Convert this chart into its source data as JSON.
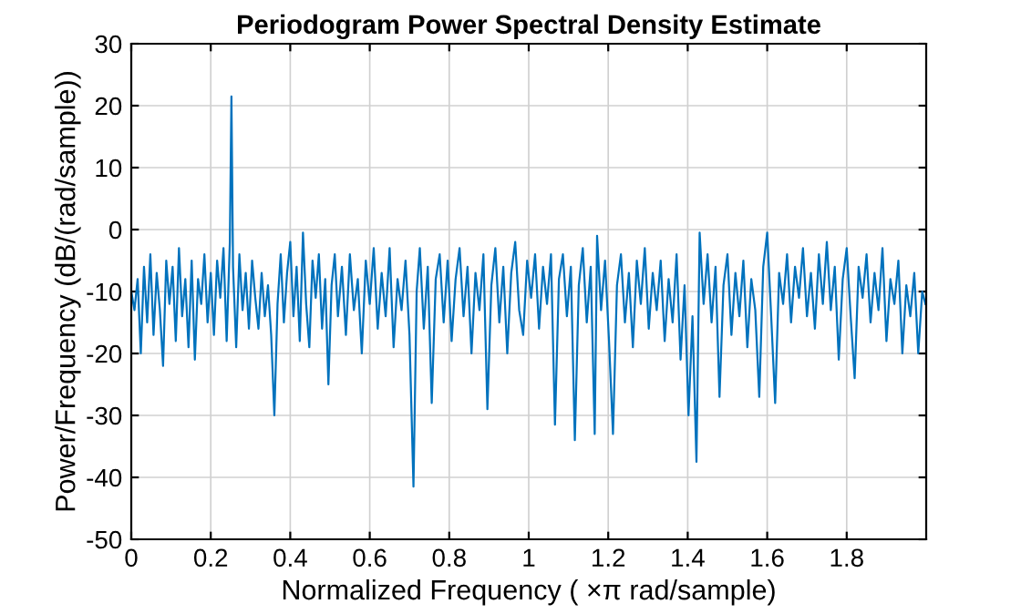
{
  "chart_data": {
    "type": "line",
    "title": "Periodogram Power Spectral Density Estimate",
    "xlabel": "Normalized Frequency ( ×π rad/sample)",
    "ylabel": "Power/Frequency (dB/(rad/sample))",
    "x": [
      0.0,
      0.008,
      0.016,
      0.024,
      0.032,
      0.04,
      0.048,
      0.056,
      0.064,
      0.072,
      0.08,
      0.088,
      0.096,
      0.104,
      0.112,
      0.12,
      0.128,
      0.136,
      0.144,
      0.152,
      0.16,
      0.168,
      0.176,
      0.184,
      0.192,
      0.2,
      0.208,
      0.216,
      0.224,
      0.232,
      0.24,
      0.248,
      0.252,
      0.256,
      0.264,
      0.272,
      0.28,
      0.288,
      0.296,
      0.304,
      0.312,
      0.32,
      0.328,
      0.336,
      0.344,
      0.352,
      0.36,
      0.368,
      0.376,
      0.384,
      0.392,
      0.4,
      0.408,
      0.416,
      0.424,
      0.432,
      0.44,
      0.448,
      0.456,
      0.464,
      0.472,
      0.48,
      0.488,
      0.496,
      0.504,
      0.512,
      0.52,
      0.53,
      0.54,
      0.55,
      0.56,
      0.57,
      0.58,
      0.59,
      0.6,
      0.61,
      0.62,
      0.63,
      0.64,
      0.65,
      0.66,
      0.67,
      0.68,
      0.69,
      0.7,
      0.71,
      0.718,
      0.726,
      0.736,
      0.746,
      0.756,
      0.766,
      0.776,
      0.786,
      0.796,
      0.806,
      0.816,
      0.826,
      0.836,
      0.846,
      0.856,
      0.866,
      0.876,
      0.886,
      0.896,
      0.906,
      0.916,
      0.926,
      0.936,
      0.946,
      0.956,
      0.966,
      0.976,
      0.986,
      0.996,
      1.006,
      1.016,
      1.026,
      1.036,
      1.046,
      1.056,
      1.066,
      1.076,
      1.086,
      1.096,
      1.106,
      1.116,
      1.126,
      1.136,
      1.146,
      1.156,
      1.166,
      1.172,
      1.182,
      1.192,
      1.202,
      1.212,
      1.222,
      1.232,
      1.242,
      1.252,
      1.262,
      1.272,
      1.282,
      1.292,
      1.302,
      1.312,
      1.322,
      1.332,
      1.342,
      1.352,
      1.362,
      1.372,
      1.382,
      1.392,
      1.402,
      1.412,
      1.422,
      1.43,
      1.44,
      1.45,
      1.46,
      1.47,
      1.48,
      1.49,
      1.5,
      1.51,
      1.52,
      1.53,
      1.54,
      1.55,
      1.56,
      1.57,
      1.58,
      1.59,
      1.6,
      1.61,
      1.62,
      1.63,
      1.64,
      1.65,
      1.66,
      1.67,
      1.68,
      1.69,
      1.7,
      1.71,
      1.72,
      1.73,
      1.74,
      1.75,
      1.76,
      1.77,
      1.78,
      1.79,
      1.8,
      1.81,
      1.82,
      1.83,
      1.84,
      1.85,
      1.86,
      1.87,
      1.88,
      1.89,
      1.9,
      1.91,
      1.92,
      1.93,
      1.94,
      1.95,
      1.96,
      1.97,
      1.98,
      1.99,
      1.998
    ],
    "series": [
      {
        "color": "#0072bd",
        "values": [
          -10,
          -13,
          -8,
          -20,
          -6,
          -15,
          -4,
          -17,
          -7,
          -13,
          -22,
          -5,
          -12,
          -6,
          -18,
          -3,
          -14,
          -8,
          -19,
          -5,
          -21,
          -8,
          -12,
          -4,
          -15,
          -7,
          -17,
          -5,
          -11,
          -3,
          -18,
          -2,
          21.5,
          -6,
          -19,
          -4,
          -13,
          -7,
          -16,
          -5,
          -11,
          -16,
          -7,
          -14,
          -9,
          -17,
          -30,
          -12,
          -4,
          -15,
          -7,
          -2,
          -14,
          -6,
          -18,
          -0.5,
          -12,
          -19,
          -5,
          -11,
          -4,
          -16,
          -8,
          -25,
          -9,
          -4,
          -14,
          -6,
          -17,
          -4,
          -13,
          -8,
          -20,
          -5,
          -12,
          -3,
          -16,
          -7,
          -14,
          -3,
          -19,
          -8,
          -13,
          -5,
          -17,
          -41.5,
          -10,
          -3,
          -16,
          -6,
          -28,
          -8,
          -4,
          -15,
          -5,
          -18,
          -8,
          -3,
          -14,
          -6,
          -20,
          -7,
          -13,
          -4,
          -29,
          -9,
          -3,
          -15,
          -6,
          -20,
          -7,
          -2,
          -13,
          -17,
          -5,
          -11,
          -4,
          -16,
          -6,
          -12,
          -4,
          -31.5,
          -8,
          -4,
          -14,
          -6,
          -34,
          -9,
          -3,
          -15,
          -6,
          -33,
          -1,
          -13,
          -5,
          -18,
          -33,
          -9,
          -4,
          -15,
          -7,
          -19,
          -5,
          -12,
          -3,
          -16,
          -7,
          -13,
          -5,
          -18,
          -8,
          -15,
          -4,
          -21,
          -9,
          -30,
          -14,
          -37.5,
          -0.5,
          -12,
          -4,
          -15,
          -6,
          -27,
          -9,
          -4,
          -17,
          -7,
          -14,
          -5,
          -19,
          -8,
          -13,
          -27,
          -6,
          -0.5,
          -14,
          -28,
          -7,
          -12,
          -4,
          -15,
          -6,
          -11,
          -3,
          -14,
          -7,
          -16,
          -4,
          -12,
          -2,
          -13,
          -6,
          -21,
          -8,
          -3,
          -14,
          -24,
          -6,
          -11,
          -4,
          -15,
          -7,
          -13,
          -3,
          -18,
          -8,
          -12,
          -5,
          -20,
          -9,
          -14,
          -7,
          -20,
          -10,
          -12
        ]
      }
    ],
    "xlim": [
      0,
      2
    ],
    "xticks": [
      0,
      0.2,
      0.4,
      0.6,
      0.8,
      1,
      1.2,
      1.4,
      1.6,
      1.8
    ],
    "ylim": [
      -50,
      30
    ],
    "yticks": [
      -50,
      -40,
      -30,
      -20,
      -10,
      0,
      10,
      20,
      30
    ],
    "grid": true,
    "line_style": "solid",
    "marker": "none"
  }
}
